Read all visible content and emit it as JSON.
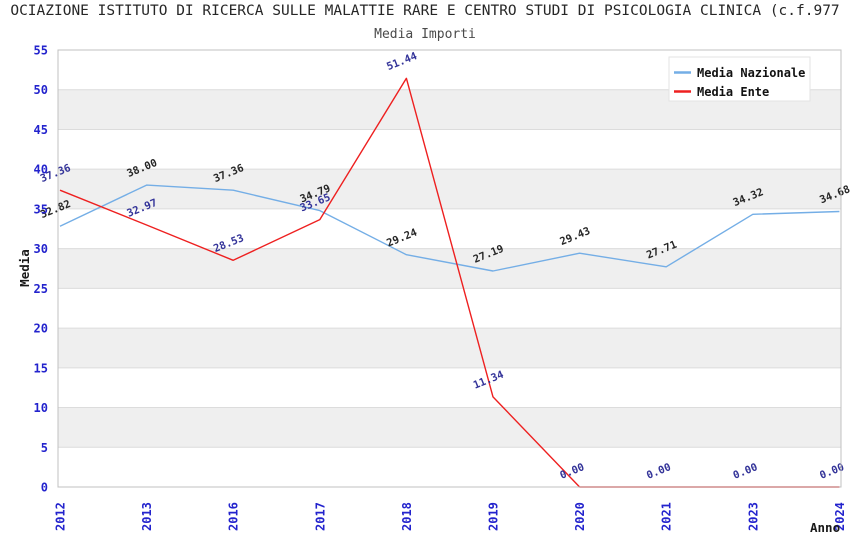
{
  "header": {
    "title": "OCIAZIONE ISTITUTO DI RICERCA SULLE MALATTIE RARE E CENTRO STUDI DI PSICOLOGIA CLINICA (c.f.977",
    "subtitle": "Media Importi"
  },
  "chart_data": {
    "type": "line",
    "title": "OCIAZIONE ISTITUTO DI RICERCA SULLE MALATTIE RARE E CENTRO STUDI DI PSICOLOGIA CLINICA (c.f.977",
    "subtitle": "Media Importi",
    "xlabel": "Anno",
    "ylabel": "Media",
    "categories": [
      "2012",
      "2013",
      "2016",
      "2017",
      "2018",
      "2019",
      "2020",
      "2021",
      "2023",
      "2024"
    ],
    "series": [
      {
        "name": "Media Nazionale",
        "color": "#74aee6",
        "label_color": "#262626",
        "values": [
          32.82,
          38.0,
          37.36,
          34.79,
          29.24,
          27.19,
          29.43,
          27.71,
          34.32,
          34.68
        ]
      },
      {
        "name": "Media Ente",
        "color": "#ee2020",
        "label_color": "#333399",
        "values": [
          37.36,
          32.97,
          28.53,
          33.65,
          51.44,
          11.34,
          0.0,
          0.0,
          0.0,
          0.0
        ]
      }
    ],
    "ylim": [
      0,
      55
    ],
    "ytick_step": 5,
    "yticks": [
      0,
      5,
      10,
      15,
      20,
      25,
      30,
      35,
      40,
      45,
      50,
      55
    ],
    "grid": "horizontal gridlines with alternating gray bands",
    "band_color": "#efefef",
    "grid_color": "#dcdcdc",
    "frame_color": "#c0c0c0",
    "tick_label_color": "#2323cd",
    "legend_position": "top-right",
    "data_labels": "shown, rotated, 2 decimals"
  }
}
